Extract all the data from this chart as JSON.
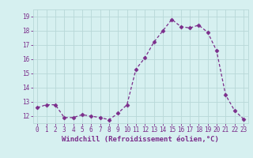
{
  "x": [
    0,
    1,
    2,
    3,
    4,
    5,
    6,
    7,
    8,
    9,
    10,
    11,
    12,
    13,
    14,
    15,
    16,
    17,
    18,
    19,
    20,
    21,
    22,
    23
  ],
  "y": [
    12.6,
    12.8,
    12.8,
    11.9,
    11.9,
    12.1,
    12.0,
    11.9,
    11.75,
    12.2,
    12.8,
    15.3,
    16.1,
    17.2,
    18.0,
    18.8,
    18.3,
    18.2,
    18.4,
    17.9,
    16.6,
    13.5,
    12.4,
    11.8
  ],
  "line_color": "#7b2d8b",
  "marker": "D",
  "marker_size": 2.5,
  "bg_color": "#d6f0f0",
  "grid_color": "#b8d8d8",
  "xlabel": "Windchill (Refroidissement éolien,°C)",
  "xlim": [
    -0.5,
    23.5
  ],
  "ylim": [
    11.5,
    19.5
  ],
  "yticks": [
    12,
    13,
    14,
    15,
    16,
    17,
    18,
    19
  ],
  "xticks": [
    0,
    1,
    2,
    3,
    4,
    5,
    6,
    7,
    8,
    9,
    10,
    11,
    12,
    13,
    14,
    15,
    16,
    17,
    18,
    19,
    20,
    21,
    22,
    23
  ],
  "tick_label_color": "#7b2d8b",
  "xlabel_color": "#7b2d8b",
  "tick_fontsize": 5.5,
  "xlabel_fontsize": 6.5
}
